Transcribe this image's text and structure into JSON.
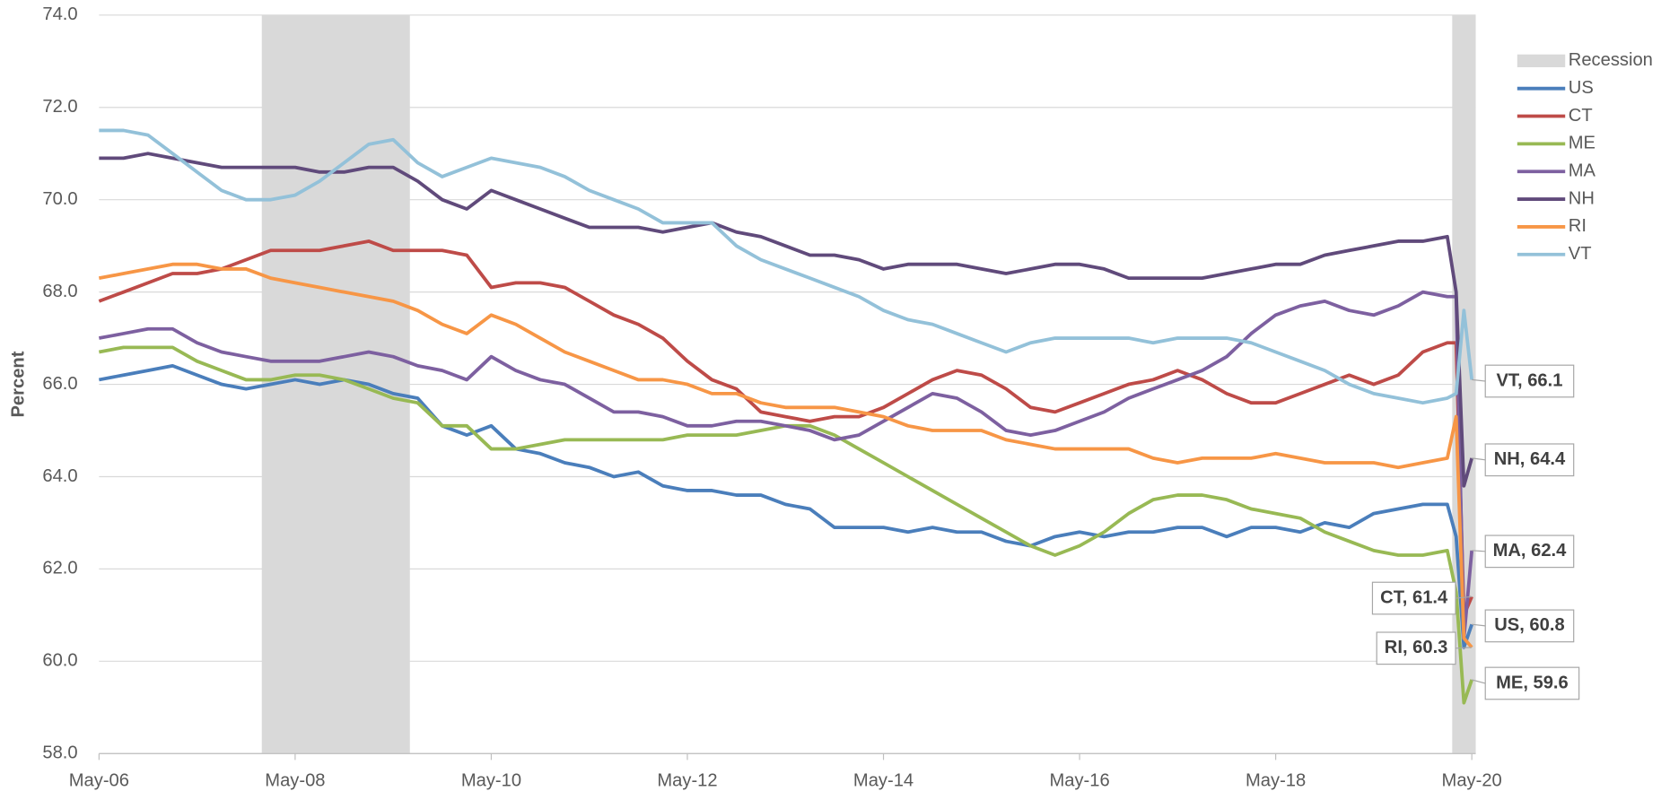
{
  "chart_data": {
    "type": "line",
    "y_label": "Percent",
    "x": [
      2006.33,
      2006.58,
      2006.83,
      2007.08,
      2007.33,
      2007.58,
      2007.83,
      2008.08,
      2008.33,
      2008.58,
      2008.83,
      2009.08,
      2009.33,
      2009.58,
      2009.83,
      2010.08,
      2010.33,
      2010.58,
      2010.83,
      2011.08,
      2011.33,
      2011.58,
      2011.83,
      2012.08,
      2012.33,
      2012.58,
      2012.83,
      2013.08,
      2013.33,
      2013.58,
      2013.83,
      2014.08,
      2014.33,
      2014.58,
      2014.83,
      2015.08,
      2015.33,
      2015.58,
      2015.83,
      2016.08,
      2016.33,
      2016.58,
      2016.83,
      2017.08,
      2017.33,
      2017.58,
      2017.83,
      2018.08,
      2018.33,
      2018.58,
      2018.83,
      2019.08,
      2019.33,
      2019.58,
      2019.83,
      2020.08,
      2020.17,
      2020.25,
      2020.33
    ],
    "xlim": [
      2006.33,
      2020.37
    ],
    "xticks": [
      {
        "value": 2006.33,
        "label": "May-06"
      },
      {
        "value": 2008.33,
        "label": "May-08"
      },
      {
        "value": 2010.33,
        "label": "May-10"
      },
      {
        "value": 2012.33,
        "label": "May-12"
      },
      {
        "value": 2014.33,
        "label": "May-14"
      },
      {
        "value": 2016.33,
        "label": "May-16"
      },
      {
        "value": 2018.33,
        "label": "May-18"
      },
      {
        "value": 2020.33,
        "label": "May-20"
      }
    ],
    "ylim": [
      58,
      74
    ],
    "yticks": [
      {
        "value": 58,
        "label": "58.0"
      },
      {
        "value": 60,
        "label": "60.0"
      },
      {
        "value": 62,
        "label": "62.0"
      },
      {
        "value": 64,
        "label": "64.0"
      },
      {
        "value": 66,
        "label": "66.0"
      },
      {
        "value": 68,
        "label": "68.0"
      },
      {
        "value": 70,
        "label": "70.0"
      },
      {
        "value": 72,
        "label": "72.0"
      },
      {
        "value": 74,
        "label": "74.0"
      }
    ],
    "grid": true,
    "legend": "right",
    "recession": {
      "name": "Recession",
      "color": "#d9d9d9",
      "periods": [
        [
          2007.99,
          2009.5
        ],
        [
          2020.13,
          2020.37
        ]
      ]
    },
    "series": [
      {
        "name": "US",
        "color": "#4a7ebb",
        "values": [
          66.1,
          66.2,
          66.3,
          66.4,
          66.2,
          66.0,
          65.9,
          66.0,
          66.1,
          66.0,
          66.1,
          66.0,
          65.8,
          65.7,
          65.1,
          64.9,
          65.1,
          64.6,
          64.5,
          64.3,
          64.2,
          64.0,
          64.1,
          63.8,
          63.7,
          63.7,
          63.6,
          63.6,
          63.4,
          63.3,
          62.9,
          62.9,
          62.9,
          62.8,
          62.9,
          62.8,
          62.8,
          62.6,
          62.5,
          62.7,
          62.8,
          62.7,
          62.8,
          62.8,
          62.9,
          62.9,
          62.7,
          62.9,
          62.9,
          62.8,
          63.0,
          62.9,
          63.2,
          63.3,
          63.4,
          63.4,
          62.7,
          60.3,
          60.8
        ],
        "value_labels": [
          null,
          null,
          null,
          null,
          null,
          null,
          null,
          null,
          null,
          null,
          null,
          null,
          null,
          null,
          null,
          null,
          null,
          null,
          null,
          null,
          null,
          null,
          null,
          null,
          null,
          null,
          null,
          null,
          null,
          null,
          null,
          null,
          null,
          null,
          null,
          null,
          null,
          null,
          null,
          null,
          null,
          null,
          null,
          null,
          null,
          null,
          null,
          null,
          null,
          null,
          null,
          null,
          null,
          null,
          null,
          null,
          null,
          null,
          "US, 60.8"
        ]
      },
      {
        "name": "CT",
        "color": "#be4b48",
        "values": [
          67.8,
          68.0,
          68.2,
          68.4,
          68.4,
          68.5,
          68.7,
          68.9,
          68.9,
          68.9,
          69.0,
          69.1,
          68.9,
          68.9,
          68.9,
          68.8,
          68.1,
          68.2,
          68.2,
          68.1,
          67.8,
          67.5,
          67.3,
          67.0,
          66.5,
          66.1,
          65.9,
          65.4,
          65.3,
          65.2,
          65.3,
          65.3,
          65.5,
          65.8,
          66.1,
          66.3,
          66.2,
          65.9,
          65.5,
          65.4,
          65.6,
          65.8,
          66.0,
          66.1,
          66.3,
          66.1,
          65.8,
          65.6,
          65.6,
          65.8,
          66.0,
          66.2,
          66.0,
          66.2,
          66.7,
          66.9,
          66.9,
          61.0,
          61.4
        ],
        "value_labels": [
          null,
          null,
          null,
          null,
          null,
          null,
          null,
          null,
          null,
          null,
          null,
          null,
          null,
          null,
          null,
          null,
          null,
          null,
          null,
          null,
          null,
          null,
          null,
          null,
          null,
          null,
          null,
          null,
          null,
          null,
          null,
          null,
          null,
          null,
          null,
          null,
          null,
          null,
          null,
          null,
          null,
          null,
          null,
          null,
          null,
          null,
          null,
          null,
          null,
          null,
          null,
          null,
          null,
          null,
          null,
          null,
          null,
          null,
          "CT, 61.4"
        ]
      },
      {
        "name": "ME",
        "color": "#98b954",
        "values": [
          66.7,
          66.8,
          66.8,
          66.8,
          66.5,
          66.3,
          66.1,
          66.1,
          66.2,
          66.2,
          66.1,
          65.9,
          65.7,
          65.6,
          65.1,
          65.1,
          64.6,
          64.6,
          64.7,
          64.8,
          64.8,
          64.8,
          64.8,
          64.8,
          64.9,
          64.9,
          64.9,
          65.0,
          65.1,
          65.1,
          64.9,
          64.6,
          64.3,
          64.0,
          63.7,
          63.4,
          63.1,
          62.8,
          62.5,
          62.3,
          62.5,
          62.8,
          63.2,
          63.5,
          63.6,
          63.6,
          63.5,
          63.3,
          63.2,
          63.1,
          62.8,
          62.6,
          62.4,
          62.3,
          62.3,
          62.4,
          61.5,
          59.1,
          59.6
        ],
        "value_labels": [
          null,
          null,
          null,
          null,
          null,
          null,
          null,
          null,
          null,
          null,
          null,
          null,
          null,
          null,
          null,
          null,
          null,
          null,
          null,
          null,
          null,
          null,
          null,
          null,
          null,
          null,
          null,
          null,
          null,
          null,
          null,
          null,
          null,
          null,
          null,
          null,
          null,
          null,
          null,
          null,
          null,
          null,
          null,
          null,
          null,
          null,
          null,
          null,
          null,
          null,
          null,
          null,
          null,
          null,
          null,
          null,
          null,
          null,
          "ME, 59.6"
        ]
      },
      {
        "name": "MA",
        "color": "#7d60a0",
        "values": [
          67.0,
          67.1,
          67.2,
          67.2,
          66.9,
          66.7,
          66.6,
          66.5,
          66.5,
          66.5,
          66.6,
          66.7,
          66.6,
          66.4,
          66.3,
          66.1,
          66.6,
          66.3,
          66.1,
          66.0,
          65.7,
          65.4,
          65.4,
          65.3,
          65.1,
          65.1,
          65.2,
          65.2,
          65.1,
          65.0,
          64.8,
          64.9,
          65.2,
          65.5,
          65.8,
          65.7,
          65.4,
          65.0,
          64.9,
          65.0,
          65.2,
          65.4,
          65.7,
          65.9,
          66.1,
          66.3,
          66.6,
          67.1,
          67.5,
          67.7,
          67.8,
          67.6,
          67.5,
          67.7,
          68.0,
          67.9,
          67.9,
          60.5,
          62.4
        ],
        "value_labels": [
          null,
          null,
          null,
          null,
          null,
          null,
          null,
          null,
          null,
          null,
          null,
          null,
          null,
          null,
          null,
          null,
          null,
          null,
          null,
          null,
          null,
          null,
          null,
          null,
          null,
          null,
          null,
          null,
          null,
          null,
          null,
          null,
          null,
          null,
          null,
          null,
          null,
          null,
          null,
          null,
          null,
          null,
          null,
          null,
          null,
          null,
          null,
          null,
          null,
          null,
          null,
          null,
          null,
          null,
          null,
          null,
          null,
          null,
          "MA, 62.4"
        ]
      },
      {
        "name": "NH",
        "color": "#604a7b",
        "values": [
          70.9,
          70.9,
          71.0,
          70.9,
          70.8,
          70.7,
          70.7,
          70.7,
          70.7,
          70.6,
          70.6,
          70.7,
          70.7,
          70.4,
          70.0,
          69.8,
          70.2,
          70.0,
          69.8,
          69.6,
          69.4,
          69.4,
          69.4,
          69.3,
          69.4,
          69.5,
          69.3,
          69.2,
          69.0,
          68.8,
          68.8,
          68.7,
          68.5,
          68.6,
          68.6,
          68.6,
          68.5,
          68.4,
          68.5,
          68.6,
          68.6,
          68.5,
          68.3,
          68.3,
          68.3,
          68.3,
          68.4,
          68.5,
          68.6,
          68.6,
          68.8,
          68.9,
          69.0,
          69.1,
          69.1,
          69.2,
          68.0,
          63.8,
          64.4
        ],
        "value_labels": [
          null,
          null,
          null,
          null,
          null,
          null,
          null,
          null,
          null,
          null,
          null,
          null,
          null,
          null,
          null,
          null,
          null,
          null,
          null,
          null,
          null,
          null,
          null,
          null,
          null,
          null,
          null,
          null,
          null,
          null,
          null,
          null,
          null,
          null,
          null,
          null,
          null,
          null,
          null,
          null,
          null,
          null,
          null,
          null,
          null,
          null,
          null,
          null,
          null,
          null,
          null,
          null,
          null,
          null,
          null,
          null,
          null,
          null,
          "NH, 64.4"
        ]
      },
      {
        "name": "RI",
        "color": "#f79646",
        "values": [
          68.3,
          68.4,
          68.5,
          68.6,
          68.6,
          68.5,
          68.5,
          68.3,
          68.2,
          68.1,
          68.0,
          67.9,
          67.8,
          67.6,
          67.3,
          67.1,
          67.5,
          67.3,
          67.0,
          66.7,
          66.5,
          66.3,
          66.1,
          66.1,
          66.0,
          65.8,
          65.8,
          65.6,
          65.5,
          65.5,
          65.5,
          65.4,
          65.3,
          65.1,
          65.0,
          65.0,
          65.0,
          64.8,
          64.7,
          64.6,
          64.6,
          64.6,
          64.6,
          64.4,
          64.3,
          64.4,
          64.4,
          64.4,
          64.5,
          64.4,
          64.3,
          64.3,
          64.3,
          64.2,
          64.3,
          64.4,
          65.3,
          60.5,
          60.3
        ],
        "value_labels": [
          null,
          null,
          null,
          null,
          null,
          null,
          null,
          null,
          null,
          null,
          null,
          null,
          null,
          null,
          null,
          null,
          null,
          null,
          null,
          null,
          null,
          null,
          null,
          null,
          null,
          null,
          null,
          null,
          null,
          null,
          null,
          null,
          null,
          null,
          null,
          null,
          null,
          null,
          null,
          null,
          null,
          null,
          null,
          null,
          null,
          null,
          null,
          null,
          null,
          null,
          null,
          null,
          null,
          null,
          null,
          null,
          null,
          null,
          "RI, 60.3"
        ]
      },
      {
        "name": "VT",
        "color": "#93c1d9",
        "values": [
          71.5,
          71.5,
          71.4,
          71.0,
          70.6,
          70.2,
          70.0,
          70.0,
          70.1,
          70.4,
          70.8,
          71.2,
          71.3,
          70.8,
          70.5,
          70.7,
          70.9,
          70.8,
          70.7,
          70.5,
          70.2,
          70.0,
          69.8,
          69.5,
          69.5,
          69.5,
          69.0,
          68.7,
          68.5,
          68.3,
          68.1,
          67.9,
          67.6,
          67.4,
          67.3,
          67.1,
          66.9,
          66.7,
          66.9,
          67.0,
          67.0,
          67.0,
          67.0,
          66.9,
          67.0,
          67.0,
          67.0,
          66.9,
          66.7,
          66.5,
          66.3,
          66.0,
          65.8,
          65.7,
          65.6,
          65.7,
          65.8,
          67.6,
          66.1
        ],
        "value_labels": [
          null,
          null,
          null,
          null,
          null,
          null,
          null,
          null,
          null,
          null,
          null,
          null,
          null,
          null,
          null,
          null,
          null,
          null,
          null,
          null,
          null,
          null,
          null,
          null,
          null,
          null,
          null,
          null,
          null,
          null,
          null,
          null,
          null,
          null,
          null,
          null,
          null,
          null,
          null,
          null,
          null,
          null,
          null,
          null,
          null,
          null,
          null,
          null,
          null,
          null,
          null,
          null,
          null,
          null,
          null,
          null,
          null,
          null,
          "VT, 66.1"
        ]
      }
    ]
  }
}
